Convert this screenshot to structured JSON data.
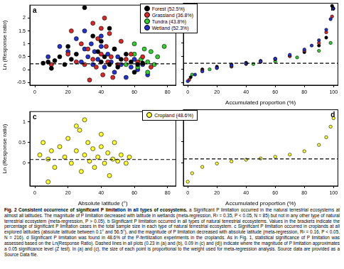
{
  "chart_data": [
    {
      "type": "scatter",
      "title": "a",
      "ylabel": "Ln (Response ratio)",
      "xlim": [
        -3,
        85
      ],
      "xticks": [
        0,
        20,
        40,
        60,
        80
      ],
      "ylim": [
        -0.6,
        2.5
      ],
      "yticks": [
        -0.5,
        0,
        0.5,
        1,
        1.5,
        2
      ],
      "grid": false,
      "legend": "top right",
      "reference_line": 0.23,
      "series": [
        {
          "name": "Forest (52.5%)",
          "color": "#000000",
          "marker": "circle",
          "x": [
            5,
            8,
            10,
            12,
            15,
            20,
            22,
            25,
            18,
            30,
            35,
            38,
            40,
            42,
            45,
            48,
            50,
            52,
            55,
            58,
            60,
            62,
            65,
            45,
            40
          ],
          "values": [
            0.25,
            0.3,
            0.05,
            0.35,
            0.5,
            0.9,
            0.4,
            0.6,
            0.2,
            2.4,
            1.3,
            0.7,
            0.3,
            0.5,
            0.2,
            0.8,
            0.1,
            0.4,
            0.6,
            0.3,
            -0.1,
            0.2,
            0.25,
            1.6,
            1.1
          ]
        },
        {
          "name": "Grassland (36.8%)",
          "color": "#d42a2a",
          "marker": "circle",
          "x": [
            10,
            20,
            22,
            25,
            28,
            30,
            32,
            35,
            35,
            37,
            38,
            40,
            41,
            42,
            43,
            44,
            45,
            46,
            47,
            48,
            50,
            52,
            55,
            58,
            62,
            65,
            70,
            33,
            40
          ],
          "values": [
            0.2,
            0.6,
            1.5,
            0.3,
            1.0,
            0.2,
            0.8,
            1.8,
            0.4,
            0.1,
            1.2,
            0.6,
            -0.2,
            2.0,
            0.9,
            0.3,
            1.4,
            0.5,
            -0.3,
            0.8,
            0.2,
            1.1,
            0.4,
            0.6,
            0.3,
            0.5,
            0.1,
            -0.4,
            1.6
          ]
        },
        {
          "name": "Tundra (43.8%)",
          "color": "#33cc33",
          "marker": "circle",
          "x": [
            55,
            60,
            62,
            64,
            66,
            68,
            70,
            72,
            68,
            74,
            78,
            60
          ],
          "values": [
            0.2,
            0.6,
            0.1,
            0.4,
            0.8,
            0.3,
            0.7,
            0.2,
            -0.1,
            0.5,
            0.9,
            1.0
          ]
        },
        {
          "name": "Wetland (52.3%)",
          "color": "#2233cc",
          "marker": "circle",
          "x": [
            8,
            15,
            20,
            25,
            28,
            30,
            32,
            34,
            35,
            36,
            38,
            40,
            42,
            44,
            46,
            48,
            50,
            52,
            55,
            58,
            60,
            62,
            65,
            68,
            40,
            30
          ],
          "values": [
            0.5,
            0.9,
            0.7,
            1.2,
            0.3,
            0.8,
            0.5,
            1.0,
            0.2,
            0.7,
            0.4,
            0.9,
            0.1,
            0.6,
            0.3,
            -0.1,
            0.5,
            0.2,
            -0.3,
            0.1,
            0.4,
            0.0,
            0.2,
            -0.2,
            1.3,
            1.5
          ]
        }
      ]
    },
    {
      "type": "scatter",
      "title": "b",
      "xlabel": "Accumulated proportion (%)",
      "xlim": [
        -3,
        103
      ],
      "xticks": [
        0,
        20,
        40,
        60,
        80,
        100
      ],
      "ylim": [
        -0.6,
        2.5
      ],
      "yticks": [
        -0.5,
        0,
        0.5,
        1,
        1.5,
        2
      ],
      "grid": false,
      "tick_labels": "x",
      "reference_line": 0.23,
      "series": [
        {
          "name": "Wetland (52.3%)",
          "color": "#2233cc",
          "marker": "circle",
          "x": [
            0,
            5,
            10,
            20,
            30,
            40,
            50,
            60,
            70,
            80,
            85,
            90,
            95,
            98,
            100
          ],
          "values": [
            -0.45,
            -0.2,
            -0.08,
            0.05,
            0.15,
            0.22,
            0.3,
            0.4,
            0.55,
            0.75,
            0.9,
            1.1,
            1.5,
            1.9,
            2.3
          ]
        },
        {
          "name": "Grassland (36.8%)",
          "color": "#d42a2a",
          "marker": "circle",
          "x": [
            1,
            10,
            20,
            30,
            40,
            50,
            60,
            70,
            80,
            90,
            95,
            99
          ],
          "values": [
            -0.4,
            -0.05,
            0.05,
            0.12,
            0.2,
            0.28,
            0.38,
            0.5,
            0.7,
            1.0,
            1.4,
            2.0
          ]
        },
        {
          "name": "Forest (52.5%)",
          "color": "#000000",
          "marker": "circle",
          "x": [
            2,
            10,
            20,
            30,
            40,
            50,
            60,
            70,
            80,
            90,
            95,
            99
          ],
          "values": [
            -0.3,
            0.0,
            0.1,
            0.18,
            0.25,
            0.32,
            0.4,
            0.5,
            0.65,
            0.9,
            1.2,
            2.4
          ]
        },
        {
          "name": "Tundra (43.8%)",
          "color": "#33cc33",
          "marker": "circle",
          "x": [
            3,
            15,
            30,
            45,
            60,
            75,
            90,
            98
          ],
          "values": [
            -0.2,
            0.0,
            0.1,
            0.2,
            0.3,
            0.45,
            0.7,
            1.0
          ]
        }
      ]
    },
    {
      "type": "scatter",
      "title": "c",
      "ylabel": "Ln (Response ratio)",
      "xlabel": "Absolute latitude (°)",
      "xlim": [
        -3,
        85
      ],
      "xticks": [
        0,
        20,
        40,
        60,
        80
      ],
      "ylim": [
        -0.55,
        1.25
      ],
      "yticks": [
        0,
        0.5,
        1
      ],
      "grid": false,
      "legend": "top right",
      "reference_line": 0.09,
      "series": [
        {
          "name": "Cropland (48.6%)",
          "color": "#ffff33",
          "marker": "circle",
          "x": [
            3,
            5,
            8,
            10,
            12,
            15,
            18,
            20,
            22,
            25,
            27,
            28,
            30,
            32,
            33,
            35,
            36,
            38,
            40,
            42,
            44,
            45,
            47,
            48,
            50,
            52,
            55,
            57,
            30,
            25,
            8,
            40
          ],
          "values": [
            0.2,
            0.5,
            0.1,
            0.3,
            -0.1,
            0.4,
            0.15,
            0.6,
            0.0,
            0.3,
            0.8,
            -0.2,
            0.2,
            0.5,
            0.05,
            0.35,
            -0.1,
            0.15,
            0.4,
            0.0,
            0.25,
            -0.3,
            0.1,
            0.5,
            0.05,
            0.2,
            0.0,
            0.15,
            1.05,
            0.9,
            -0.45,
            0.7
          ]
        }
      ]
    },
    {
      "type": "scatter",
      "title": "d",
      "xlabel": "Accumulated proportion (%)",
      "xlim": [
        -3,
        103
      ],
      "xticks": [
        0,
        20,
        40,
        60,
        80,
        100
      ],
      "ylim": [
        -0.55,
        1.25
      ],
      "yticks": [
        0,
        0.5,
        1
      ],
      "grid": false,
      "tick_labels": "x",
      "reference_line": 0.09,
      "series": [
        {
          "name": "Cropland (48.6%)",
          "color": "#ffff33",
          "marker": "circle",
          "x": [
            0,
            3,
            10,
            20,
            30,
            40,
            50,
            60,
            70,
            80,
            90,
            95,
            98,
            100
          ],
          "values": [
            -0.45,
            -0.25,
            -0.1,
            -0.02,
            0.03,
            0.07,
            0.1,
            0.14,
            0.19,
            0.27,
            0.42,
            0.6,
            0.85,
            1.05
          ]
        }
      ]
    }
  ],
  "figure_caption": {
    "title": "Fig. 2 Consistent occurrence of significant P limitation in all types of ecosystems.",
    "text": "a Significant P limitation occurred in the natural terrestrial ecosystems at almost all latitudes. The magnitude of P limitation decreased with latitude in wetlands (meta-regression, R² = 0.35, P < 0.05, N = 85) but not in any other type of natural terrestrial ecosystem (meta-regression, P > 0.05). b Significant P limitation occurred in all types of natural terrestrial ecosystems. Values in the brackets indicate the percentage of significant P limitation cases in the total sample size in each type of natural terrestrial ecosystem. c Significant P limitation occurred in croplands at all explored latitudes (absolute latitude between 0.1° and 56.5°), and the magnitude of P limitation decreased with absolute latitude (meta-regression, R² = 0.16, P < 0.05, N = 216). d Significant P limitation was found in 48.6% of the P-fertilization experiments in the croplands. As in Fig. 1, statistical significance of P limitation was assessed based on the Ln(Response Ratio). Dashed lines in all plots (0.23 in (a) and (b), 0.09 in (c) and (d)) indicate where the magnitude of P limitation approximates a 0.05 significance level (Z test). In (a) and (c), the size of each point is proportional to the weight used for meta-regression analysis. Source data are provided as a Source Data file."
  }
}
